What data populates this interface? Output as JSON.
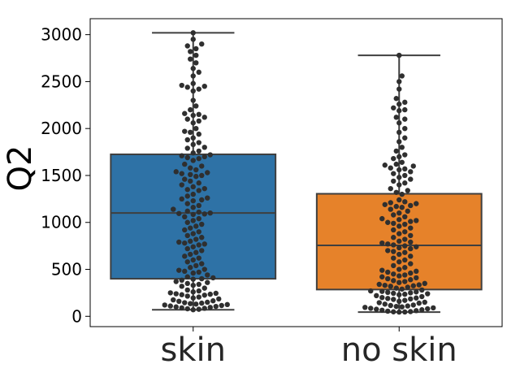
{
  "chart_data": {
    "type": "box-swarm",
    "title": "",
    "xlabel": "",
    "ylabel": "Q2",
    "ylim": [
      -110,
      3170
    ],
    "yticks": [
      0,
      500,
      1000,
      1500,
      2000,
      2500,
      3000
    ],
    "grid": false,
    "categories": [
      "skin",
      "no skin"
    ],
    "boxes": [
      {
        "category": "skin",
        "color": "#2e72a6",
        "whisker_low": 70,
        "q1": 400,
        "median": 1100,
        "q3": 1725,
        "whisker_high": 3020
      },
      {
        "category": "no skin",
        "color": "#e6822a",
        "whisker_low": 45,
        "q1": 285,
        "median": 755,
        "q3": 1305,
        "whisker_high": 2780
      }
    ],
    "swarm": [
      {
        "category": "skin",
        "values": [
          3020,
          2950,
          2900,
          2880,
          2850,
          2820,
          2780,
          2740,
          2700,
          2640,
          2600,
          2560,
          2480,
          2460,
          2450,
          2440,
          2420,
          2400,
          2300,
          2240,
          2200,
          2160,
          2150,
          2140,
          2120,
          2100,
          2080,
          2060,
          2000,
          1970,
          1960,
          1940,
          1900,
          1880,
          1850,
          1830,
          1800,
          1790,
          1760,
          1740,
          1720,
          1710,
          1700,
          1690,
          1680,
          1660,
          1620,
          1600,
          1580,
          1560,
          1540,
          1530,
          1520,
          1510,
          1500,
          1490,
          1460,
          1440,
          1420,
          1400,
          1380,
          1360,
          1350,
          1340,
          1300,
          1280,
          1260,
          1250,
          1240,
          1230,
          1200,
          1180,
          1160,
          1140,
          1120,
          1110,
          1100,
          1095,
          1090,
          1085,
          1060,
          1040,
          1020,
          1000,
          980,
          960,
          940,
          920,
          900,
          880,
          860,
          840,
          820,
          800,
          790,
          780,
          770,
          760,
          740,
          720,
          700,
          680,
          660,
          640,
          620,
          600,
          580,
          560,
          540,
          520,
          500,
          490,
          480,
          470,
          460,
          440,
          420,
          410,
          400,
          395,
          385,
          370,
          360,
          350,
          340,
          330,
          320,
          300,
          280,
          270,
          260,
          250,
          245,
          240,
          235,
          230,
          225,
          215,
          205,
          195,
          185,
          175,
          165,
          160,
          150,
          145,
          140,
          135,
          130,
          125,
          120,
          115,
          110,
          105,
          100,
          95,
          90,
          85,
          80,
          75,
          70
        ]
      },
      {
        "category": "no skin",
        "values": [
          2780,
          2560,
          2500,
          2420,
          2320,
          2280,
          2260,
          2220,
          2200,
          2190,
          2120,
          2100,
          2060,
          2000,
          1960,
          1900,
          1860,
          1800,
          1760,
          1720,
          1700,
          1680,
          1640,
          1620,
          1610,
          1600,
          1580,
          1570,
          1560,
          1540,
          1520,
          1500,
          1480,
          1460,
          1440,
          1420,
          1400,
          1360,
          1340,
          1320,
          1300,
          1240,
          1220,
          1210,
          1200,
          1190,
          1180,
          1170,
          1160,
          1140,
          1120,
          1100,
          1080,
          1060,
          1040,
          1030,
          1020,
          1010,
          1000,
          990,
          980,
          960,
          940,
          920,
          900,
          880,
          860,
          840,
          820,
          800,
          790,
          780,
          770,
          760,
          750,
          740,
          730,
          720,
          700,
          690,
          680,
          660,
          640,
          620,
          600,
          580,
          560,
          540,
          520,
          500,
          490,
          480,
          470,
          460,
          450,
          440,
          430,
          420,
          410,
          400,
          390,
          380,
          370,
          360,
          350,
          340,
          335,
          330,
          325,
          320,
          310,
          300,
          290,
          280,
          270,
          265,
          260,
          255,
          250,
          245,
          240,
          235,
          230,
          220,
          210,
          200,
          195,
          190,
          185,
          180,
          170,
          160,
          150,
          145,
          140,
          130,
          120,
          115,
          110,
          105,
          100,
          95,
          90,
          85,
          80,
          75,
          70,
          65,
          60,
          55,
          50,
          48,
          46,
          45
        ]
      }
    ]
  }
}
